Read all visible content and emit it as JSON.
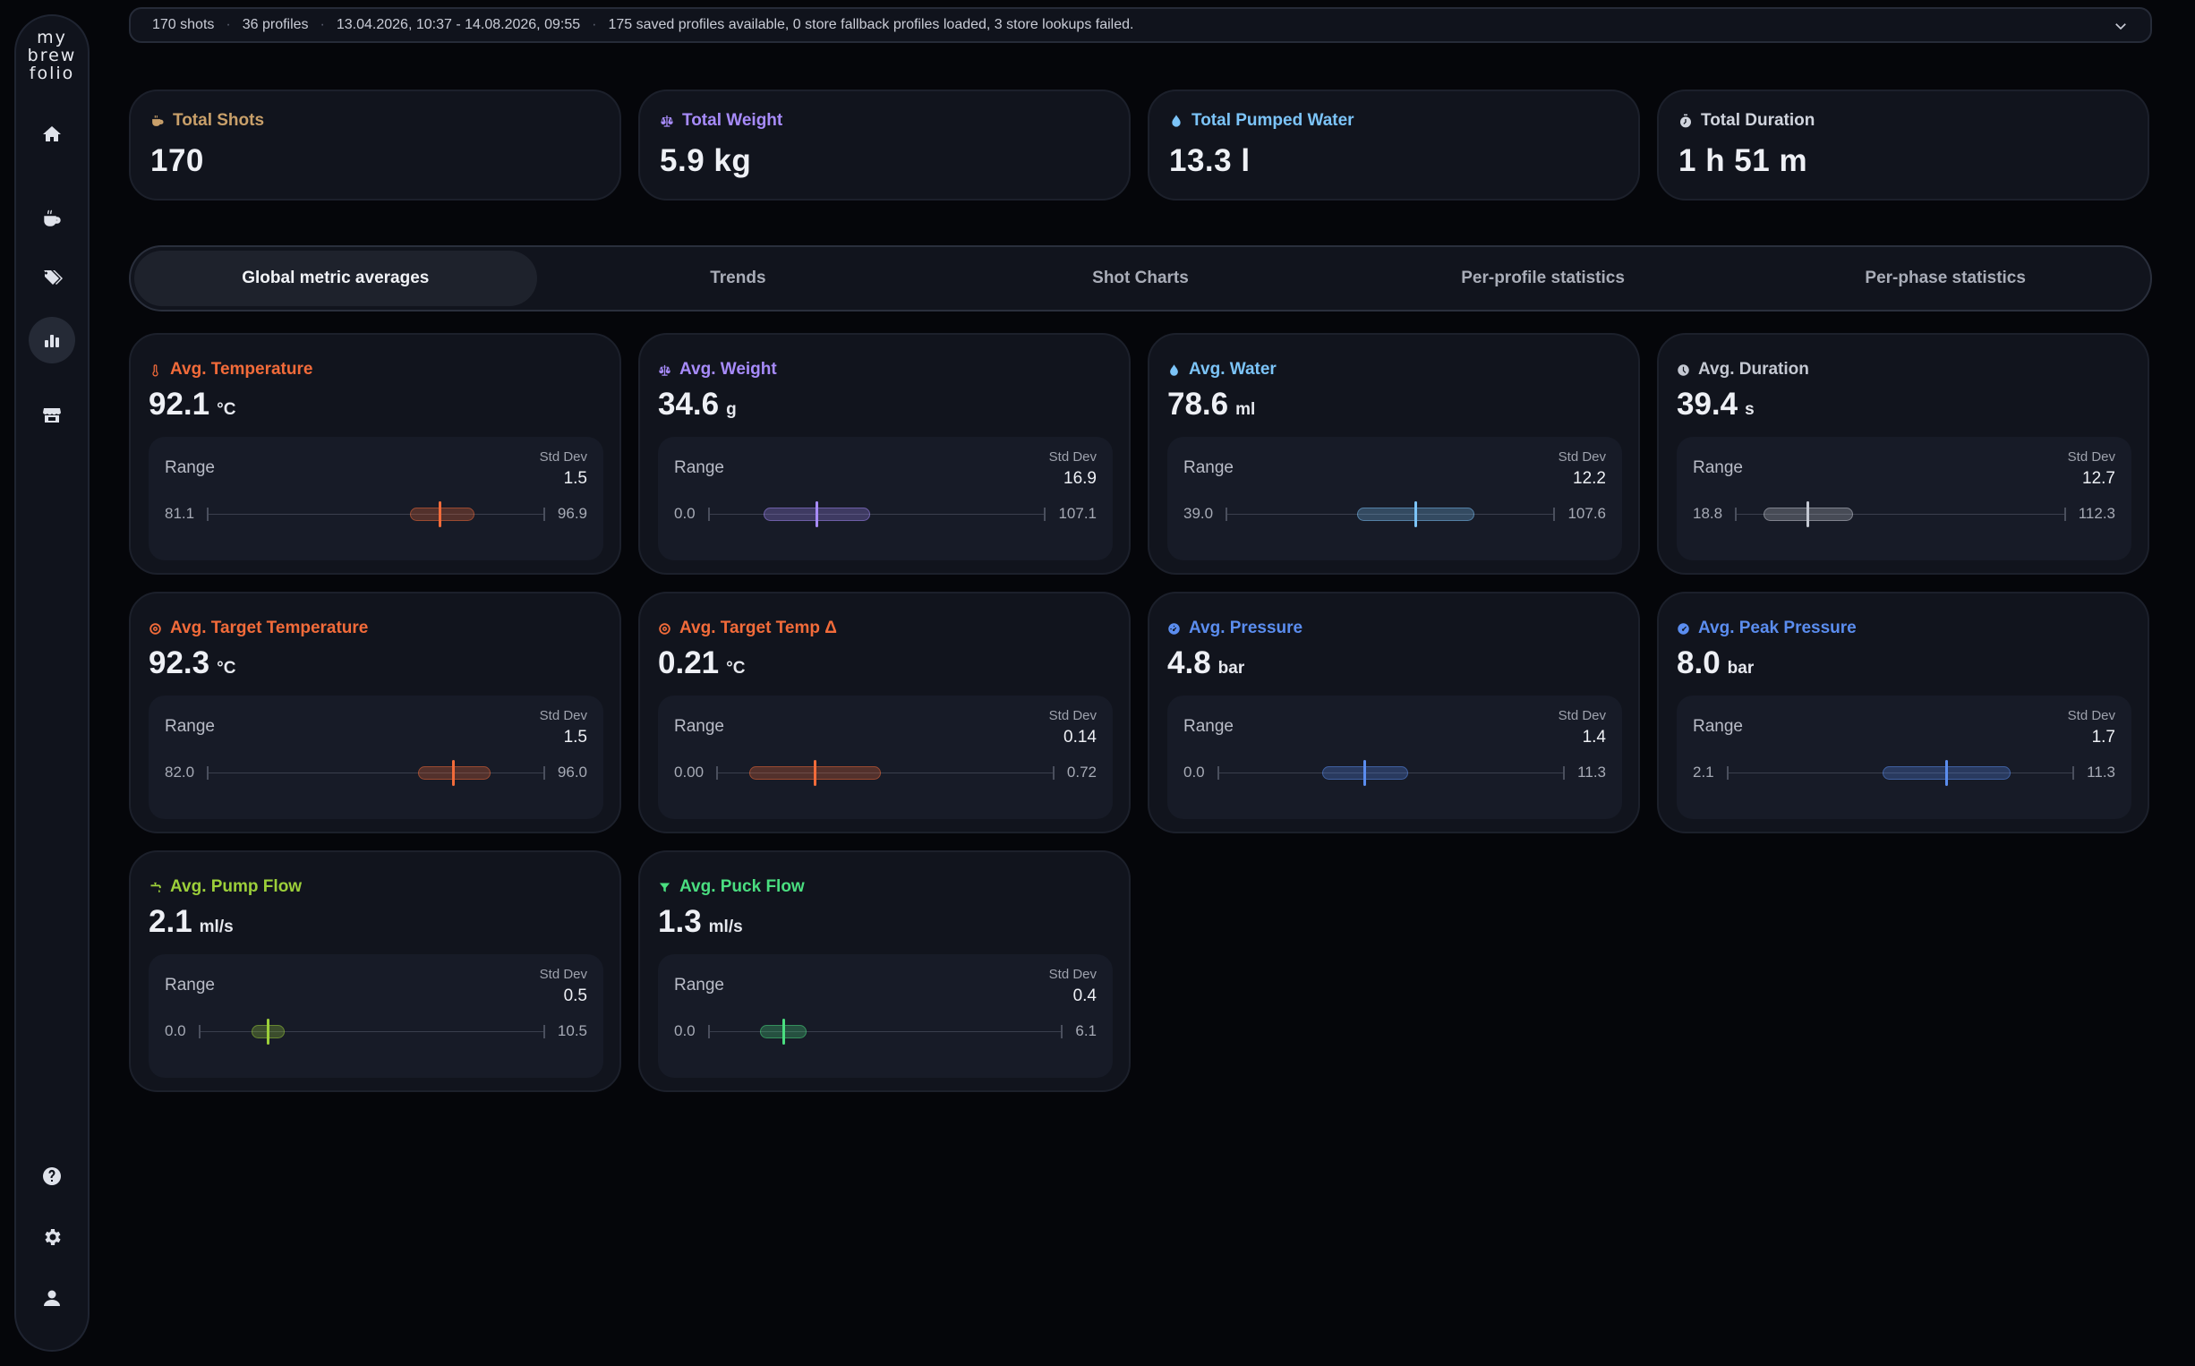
{
  "app": {
    "logo_lines": [
      "my",
      "brew",
      "folio"
    ]
  },
  "nav": [
    {
      "name": "home-icon",
      "active": false
    },
    {
      "name": "coffee-cup-icon",
      "active": false
    },
    {
      "name": "tags-icon",
      "active": false
    },
    {
      "name": "statistics-icon",
      "active": true
    },
    {
      "name": "store-icon",
      "active": false
    },
    {
      "name": "help-icon",
      "active": false
    },
    {
      "name": "gear-icon",
      "active": false
    },
    {
      "name": "user-icon",
      "active": false
    }
  ],
  "infobar": {
    "shots": "170 shots",
    "profiles": "36 profiles",
    "date_range": "13.04.2026, 10:37 - 14.08.2026, 09:55",
    "message": "175 saved profiles available, 0 store fallback profiles loaded, 3 store lookups failed."
  },
  "summary": [
    {
      "title": "Total Shots",
      "value": "170",
      "color": "#c9a06a",
      "icon": "coffee-cup-icon"
    },
    {
      "title": "Total Weight",
      "value": "5.9 kg",
      "color": "#a78bfa",
      "icon": "scale-icon"
    },
    {
      "title": "Total Pumped Water",
      "value": "13.3 l",
      "color": "#7cc4f8",
      "icon": "water-drop-icon"
    },
    {
      "title": "Total Duration",
      "value": "1 h 51 m",
      "color": "#d1d5de",
      "icon": "stopwatch-icon"
    }
  ],
  "tabs": [
    {
      "label": "Global metric averages",
      "active": true
    },
    {
      "label": "Trends",
      "active": false
    },
    {
      "label": "Shot Charts",
      "active": false
    },
    {
      "label": "Per-profile statistics",
      "active": false
    },
    {
      "label": "Per-phase statistics",
      "active": false
    }
  ],
  "metrics_common": {
    "range_label": "Range",
    "std_label": "Std Dev"
  },
  "metrics": [
    {
      "title": "Avg. Temperature",
      "value": "92.1",
      "unit": "°C",
      "std": "1.5",
      "min": "81.1",
      "max": "96.9",
      "color": "#f26b3a",
      "icon": "thermometer-icon",
      "band_start": 0.6,
      "band_end": 0.79,
      "mean": 0.69
    },
    {
      "title": "Avg. Weight",
      "value": "34.6",
      "unit": "g",
      "std": "16.9",
      "min": "0.0",
      "max": "107.1",
      "color": "#a78bfa",
      "icon": "scale-icon",
      "band_start": 0.165,
      "band_end": 0.48,
      "mean": 0.323
    },
    {
      "title": "Avg. Water",
      "value": "78.6",
      "unit": "ml",
      "std": "12.2",
      "min": "39.0",
      "max": "107.6",
      "color": "#7cc4f8",
      "icon": "water-drop-icon",
      "band_start": 0.4,
      "band_end": 0.755,
      "mean": 0.577
    },
    {
      "title": "Avg. Duration",
      "value": "39.4",
      "unit": "s",
      "std": "12.7",
      "min": "18.8",
      "max": "112.3",
      "color": "#c4c8d2",
      "icon": "clock-icon",
      "band_start": 0.085,
      "band_end": 0.357,
      "mean": 0.22
    },
    {
      "title": "Avg. Target Temperature",
      "value": "92.3",
      "unit": "°C",
      "std": "1.5",
      "min": "82.0",
      "max": "96.0",
      "color": "#f26b3a",
      "icon": "target-icon",
      "band_start": 0.625,
      "band_end": 0.84,
      "mean": 0.73
    },
    {
      "title": "Avg. Target Temp Δ",
      "value": "0.21",
      "unit": "°C",
      "std": "0.14",
      "min": "0.00",
      "max": "0.72",
      "color": "#f26b3a",
      "icon": "target-icon",
      "band_start": 0.097,
      "band_end": 0.486,
      "mean": 0.292
    },
    {
      "title": "Avg. Pressure",
      "value": "4.8",
      "unit": "bar",
      "std": "1.4",
      "min": "0.0",
      "max": "11.3",
      "color": "#5b8def",
      "icon": "gauge-icon",
      "band_start": 0.301,
      "band_end": 0.549,
      "mean": 0.425
    },
    {
      "title": "Avg. Peak Pressure",
      "value": "8.0",
      "unit": "bar",
      "std": "1.7",
      "min": "2.1",
      "max": "11.3",
      "color": "#5b8def",
      "icon": "gauge-peak-icon",
      "band_start": 0.448,
      "band_end": 0.818,
      "mean": 0.633
    },
    {
      "title": "Avg. Pump Flow",
      "value": "2.1",
      "unit": "ml/s",
      "std": "0.5",
      "min": "0.0",
      "max": "10.5",
      "color": "#9ccf3a",
      "icon": "faucet-icon",
      "band_start": 0.152,
      "band_end": 0.248,
      "mean": 0.2
    },
    {
      "title": "Avg. Puck Flow",
      "value": "1.3",
      "unit": "ml/s",
      "std": "0.4",
      "min": "0.0",
      "max": "6.1",
      "color": "#4ade80",
      "icon": "funnel-icon",
      "band_start": 0.148,
      "band_end": 0.279,
      "mean": 0.213
    }
  ]
}
